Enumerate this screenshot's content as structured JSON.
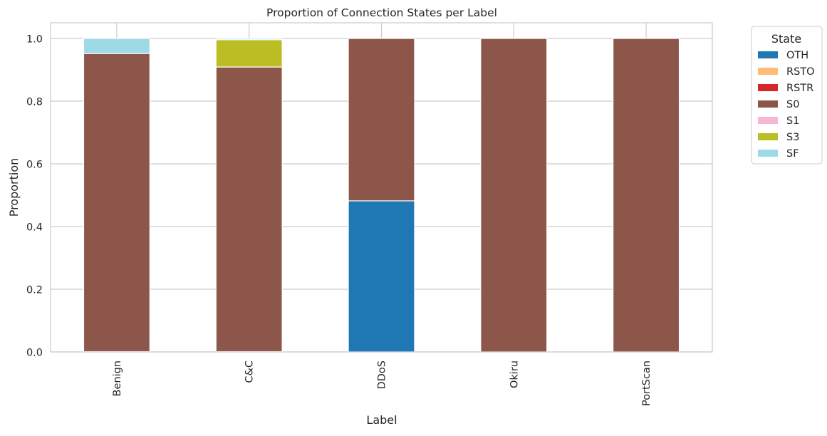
{
  "chart_data": {
    "type": "bar",
    "stacked": true,
    "title": "Proportion of Connection States per Label",
    "xlabel": "Label",
    "ylabel": "Proportion",
    "ylim": [
      0,
      1.05
    ],
    "yticks": [
      0.0,
      0.2,
      0.4,
      0.6,
      0.8,
      1.0
    ],
    "ytick_labels": [
      "0.0",
      "0.2",
      "0.4",
      "0.6",
      "0.8",
      "1.0"
    ],
    "categories": [
      "Benign",
      "C&C",
      "DDoS",
      "Okiru",
      "PortScan"
    ],
    "grid": true,
    "legend": {
      "title": "State",
      "placement": "outside-right-top"
    },
    "series": [
      {
        "name": "OTH",
        "color": "#1f77b4",
        "values": [
          0.001,
          0.001,
          0.482,
          0.0,
          0.0
        ]
      },
      {
        "name": "RSTO",
        "color": "#ffbb78",
        "values": [
          0.0,
          0.0,
          0.0,
          0.0,
          0.0
        ]
      },
      {
        "name": "RSTR",
        "color": "#d62728",
        "values": [
          0.0,
          0.0,
          0.0,
          0.0,
          0.0
        ]
      },
      {
        "name": "S0",
        "color": "#8c564b",
        "values": [
          0.951,
          0.908,
          0.518,
          1.0,
          1.0
        ]
      },
      {
        "name": "S1",
        "color": "#f7b6d2",
        "values": [
          0.0,
          0.0,
          0.0,
          0.0,
          0.0
        ]
      },
      {
        "name": "S3",
        "color": "#bcbd22",
        "values": [
          0.0,
          0.087,
          0.0,
          0.0,
          0.0
        ]
      },
      {
        "name": "SF",
        "color": "#9edae5",
        "values": [
          0.048,
          0.004,
          0.0,
          0.0,
          0.0
        ]
      }
    ]
  }
}
